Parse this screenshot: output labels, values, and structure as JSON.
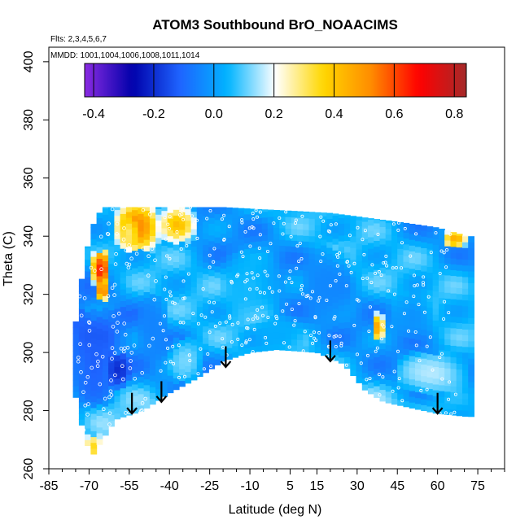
{
  "chart_data": {
    "type": "heatmap",
    "title": "ATOM3 Southbound BrO_NOAACIMS",
    "flights_note": "Flts: 2,3,4,5,6,7",
    "dates_note": "MMDD: 1001,1004,1006,1008,1011,1014",
    "xlabel": "Latitude (deg N)",
    "ylabel": "Theta (C)",
    "xlim": [
      -85,
      85
    ],
    "ylim": [
      260,
      405
    ],
    "x_ticks": [
      -85,
      -70,
      -55,
      -40,
      -25,
      -10,
      5,
      15,
      30,
      45,
      60,
      75
    ],
    "y_ticks": [
      260,
      280,
      300,
      320,
      340,
      360,
      380,
      400
    ],
    "colorbar": {
      "range": [
        -0.43,
        0.84
      ],
      "ticks": [
        -0.4,
        -0.2,
        0.0,
        0.2,
        0.4,
        0.6,
        0.8
      ],
      "tick_labels": [
        "-0.4",
        "-0.2",
        "0.0",
        "0.2",
        "0.4",
        "0.6",
        "0.8"
      ],
      "colors": [
        "#8a2be2",
        "#0000aa",
        "#1e64ff",
        "#00b4ff",
        "#ffffff",
        "#ffd700",
        "#ff8c00",
        "#ff0000",
        "#a52a2a"
      ]
    },
    "domain_upper": [
      [
        -75,
        310
      ],
      [
        -72,
        330
      ],
      [
        -69,
        343
      ],
      [
        -65,
        350
      ],
      [
        -40,
        350
      ],
      [
        -20,
        350
      ],
      [
        0,
        349
      ],
      [
        20,
        348
      ],
      [
        45,
        345
      ],
      [
        60,
        343
      ],
      [
        71,
        340
      ]
    ],
    "domain_lower": [
      [
        71,
        278
      ],
      [
        60,
        279
      ],
      [
        40,
        283
      ],
      [
        33,
        287
      ],
      [
        25,
        296
      ],
      [
        15,
        300
      ],
      [
        0,
        301
      ],
      [
        -10,
        300
      ],
      [
        -20,
        297
      ],
      [
        -30,
        291
      ],
      [
        -40,
        286
      ],
      [
        -50,
        280
      ],
      [
        -60,
        277
      ],
      [
        -65,
        270
      ],
      [
        -69,
        264
      ],
      [
        -72,
        272
      ],
      [
        -75,
        285
      ]
    ],
    "patches": [
      {
        "x": [
          -60,
          -44
        ],
        "y": [
          335,
          352
        ],
        "value": 0.52
      },
      {
        "x": [
          -44,
          -30
        ],
        "y": [
          338,
          350
        ],
        "value": 0.42
      },
      {
        "x": [
          -69,
          -62
        ],
        "y": [
          322,
          335
        ],
        "value": 0.65
      },
      {
        "x": [
          -68,
          -62
        ],
        "y": [
          318,
          324
        ],
        "value": 0.55
      },
      {
        "x": [
          -58,
          -52
        ],
        "y": [
          336,
          346
        ],
        "value": 0.3
      },
      {
        "x": [
          -75,
          -60
        ],
        "y": [
          282,
          312
        ],
        "value": -0.12
      },
      {
        "x": [
          -63,
          -55
        ],
        "y": [
          288,
          300
        ],
        "value": -0.2
      },
      {
        "x": [
          -52,
          -40
        ],
        "y": [
          298,
          320
        ],
        "value": -0.05
      },
      {
        "x": [
          -20,
          0
        ],
        "y": [
          312,
          335
        ],
        "value": 0.06
      },
      {
        "x": [
          10,
          28
        ],
        "y": [
          310,
          336
        ],
        "value": -0.04
      },
      {
        "x": [
          36,
          40
        ],
        "y": [
          304,
          314
        ],
        "value": 0.5
      },
      {
        "x": [
          44,
          58
        ],
        "y": [
          305,
          320
        ],
        "value": -0.02
      },
      {
        "x": [
          45,
          71
        ],
        "y": [
          286,
          300
        ],
        "value": 0.16
      },
      {
        "x": [
          62,
          71
        ],
        "y": [
          336,
          342
        ],
        "value": 0.45
      },
      {
        "x": [
          -72,
          -65
        ],
        "y": [
          263,
          272
        ],
        "value": 0.35
      },
      {
        "x": [
          -40,
          -28
        ],
        "y": [
          290,
          305
        ],
        "value": 0.12
      },
      {
        "x": [
          -8,
          10
        ],
        "y": [
          300,
          312
        ],
        "value": 0.03
      }
    ],
    "flight_turn_arrows": [
      {
        "x": -54,
        "y_from": 285,
        "y_to": 279
      },
      {
        "x": -43,
        "y_from": 289,
        "y_to": 283
      },
      {
        "x": -19,
        "y_from": 301,
        "y_to": 295
      },
      {
        "x": 20,
        "y_from": 303,
        "y_to": 297
      },
      {
        "x": 60,
        "y_from": 285,
        "y_to": 279
      }
    ]
  }
}
